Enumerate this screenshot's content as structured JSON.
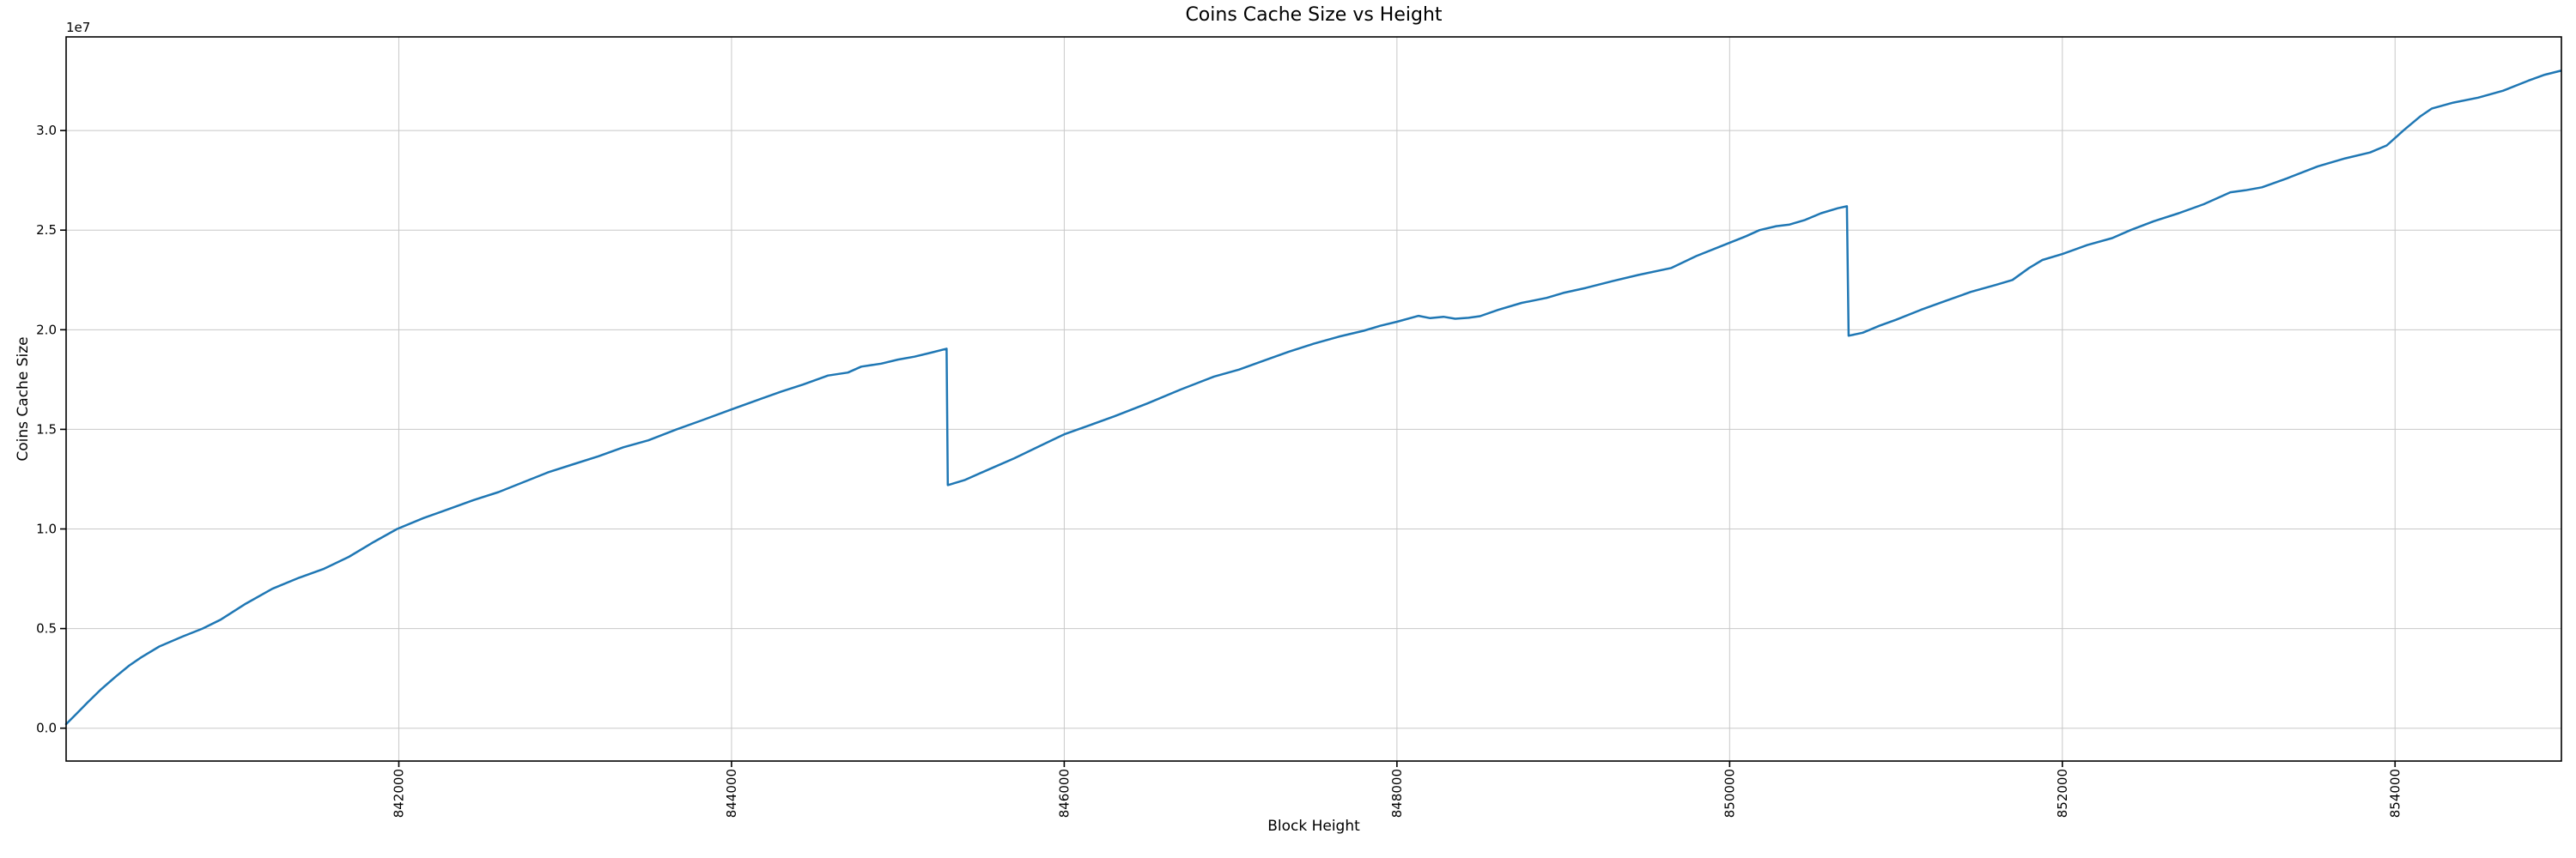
{
  "figure": {
    "background": "#ffffff"
  },
  "chart_data": {
    "type": "line",
    "title": "Coins Cache Size vs Height",
    "xlabel": "Block Height",
    "ylabel": "Coins Cache Size",
    "y_axis_offset_label": "1e7",
    "grid": true,
    "legend": false,
    "line_color": "#1f77b4",
    "grid_color": "#c8c8c8",
    "spine_color": "#000000",
    "xlim": [
      840000,
      855000
    ],
    "ylim": [
      -1650000,
      34700000
    ],
    "x_ticks": [
      842000,
      844000,
      846000,
      848000,
      850000,
      852000,
      854000
    ],
    "x_tick_labels": [
      "842000",
      "844000",
      "846000",
      "848000",
      "850000",
      "852000",
      "854000"
    ],
    "y_ticks": [
      0,
      5000000,
      10000000,
      15000000,
      20000000,
      25000000,
      30000000
    ],
    "y_tick_labels": [
      "0.0",
      "0.5",
      "1.0",
      "1.5",
      "2.0",
      "2.5",
      "3.0"
    ],
    "series": [
      {
        "name": "coins_cache_size",
        "x": [
          840000,
          840060,
          840130,
          840210,
          840300,
          840380,
          840450,
          840560,
          840700,
          840820,
          840930,
          841080,
          841240,
          841400,
          841550,
          841700,
          841850,
          841990,
          842150,
          842300,
          842450,
          842600,
          842750,
          842900,
          843050,
          843200,
          843350,
          843500,
          843670,
          843820,
          844000,
          844150,
          844300,
          844430,
          844580,
          844700,
          844780,
          844900,
          845000,
          845100,
          845200,
          845293,
          845300,
          845400,
          845550,
          845700,
          845850,
          846000,
          846150,
          846300,
          846500,
          846700,
          846900,
          847050,
          847200,
          847350,
          847500,
          847650,
          847800,
          847900,
          848000,
          848130,
          848200,
          848280,
          848350,
          848430,
          848500,
          848610,
          848750,
          848900,
          849000,
          849135,
          849300,
          849450,
          849650,
          849800,
          849950,
          850100,
          850180,
          850280,
          850360,
          850450,
          850550,
          850650,
          850705,
          850715,
          850800,
          850900,
          851000,
          851150,
          851300,
          851450,
          851600,
          851700,
          851800,
          851880,
          852000,
          852150,
          852300,
          852410,
          852550,
          852700,
          852850,
          853010,
          853100,
          853200,
          853350,
          853535,
          853700,
          853850,
          853950,
          854050,
          854150,
          854220,
          854350,
          854500,
          854650,
          854800,
          854900,
          854995
        ],
        "y": [
          200000,
          700000,
          1300000,
          1950000,
          2600000,
          3150000,
          3550000,
          4100000,
          4600000,
          5000000,
          5450000,
          6250000,
          7000000,
          7550000,
          8000000,
          8600000,
          9350000,
          10000000,
          10550000,
          11000000,
          11450000,
          11850000,
          12350000,
          12850000,
          13250000,
          13650000,
          14100000,
          14450000,
          15000000,
          15450000,
          16000000,
          16450000,
          16900000,
          17250000,
          17700000,
          17850000,
          18150000,
          18300000,
          18500000,
          18650000,
          18850000,
          19050000,
          12200000,
          12450000,
          13000000,
          13550000,
          14150000,
          14750000,
          15200000,
          15650000,
          16300000,
          17000000,
          17650000,
          18000000,
          18450000,
          18900000,
          19300000,
          19650000,
          19950000,
          20200000,
          20400000,
          20700000,
          20580000,
          20650000,
          20550000,
          20600000,
          20680000,
          21000000,
          21350000,
          21600000,
          21850000,
          22100000,
          22450000,
          22750000,
          23100000,
          23700000,
          24200000,
          24700000,
          25000000,
          25200000,
          25280000,
          25500000,
          25850000,
          26100000,
          26200000,
          19700000,
          19850000,
          20200000,
          20500000,
          21000000,
          21450000,
          21900000,
          22250000,
          22500000,
          23100000,
          23500000,
          23800000,
          24250000,
          24600000,
          25000000,
          25450000,
          25850000,
          26300000,
          26900000,
          27000000,
          27150000,
          27600000,
          28200000,
          28600000,
          28900000,
          29250000,
          30000000,
          30700000,
          31100000,
          31400000,
          31650000,
          32000000,
          32500000,
          32800000,
          33000000
        ]
      }
    ]
  }
}
